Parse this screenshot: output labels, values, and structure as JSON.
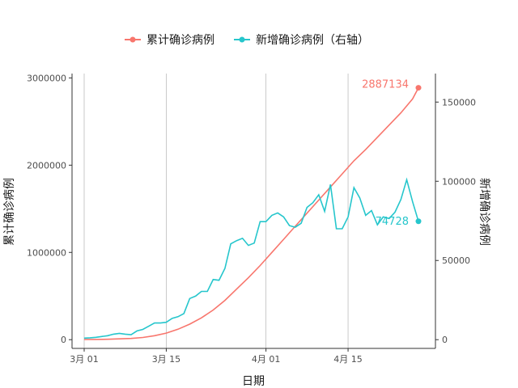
{
  "chart_data": {
    "type": "line",
    "xlabel": "日期",
    "ylabel_left": "累计确诊病例",
    "ylabel_right": "新增确诊病例",
    "x_ticks": [
      "3月 01",
      "3月 15",
      "4月 01",
      "4月 15"
    ],
    "x_tick_days": [
      1,
      15,
      32,
      46
    ],
    "y_left_ticks": [
      "0",
      "1000000",
      "2000000",
      "3000000"
    ],
    "y_left_tick_values": [
      0,
      1000000,
      2000000,
      3000000
    ],
    "y_right_ticks": [
      "0",
      "50000",
      "100000",
      "150000"
    ],
    "y_right_tick_values": [
      0,
      50000,
      100000,
      150000
    ],
    "ylim_left": [
      -100000,
      3050000
    ],
    "ylim_right": [
      -5500,
      168000
    ],
    "grid": "vertical major lines only",
    "legend_position": "top",
    "colors": {
      "cumulative": "#F8766D",
      "new": "#26C6CC"
    },
    "series": [
      {
        "name": "累计确诊病例",
        "axis": "left",
        "color": "#F8766D",
        "end_label": "2887134",
        "x": [
          1,
          3,
          5,
          7,
          9,
          11,
          13,
          15,
          17,
          19,
          21,
          23,
          25,
          27,
          29,
          31,
          33,
          35,
          37,
          39,
          41,
          43,
          45,
          47,
          49,
          51,
          53,
          55,
          57,
          58
        ],
        "values": [
          2000,
          3000,
          5000,
          9000,
          14000,
          25000,
          45000,
          75000,
          120000,
          178000,
          250000,
          340000,
          450000,
          580000,
          710000,
          850000,
          1000000,
          1150000,
          1300000,
          1450000,
          1600000,
          1750000,
          1900000,
          2050000,
          2180000,
          2320000,
          2460000,
          2600000,
          2760000,
          2887134
        ]
      },
      {
        "name": "新增确诊病例（右轴）",
        "axis": "right",
        "color": "#26C6CC",
        "end_label": "74728",
        "x": [
          1,
          2,
          3,
          4,
          5,
          6,
          7,
          8,
          9,
          10,
          11,
          12,
          13,
          14,
          15,
          16,
          17,
          18,
          19,
          20,
          21,
          22,
          23,
          24,
          25,
          26,
          27,
          28,
          29,
          30,
          31,
          32,
          33,
          34,
          35,
          36,
          37,
          38,
          39,
          40,
          41,
          42,
          43,
          44,
          45,
          46,
          47,
          48,
          49,
          50,
          51,
          52,
          53,
          54,
          55,
          56,
          57,
          58
        ],
        "values": [
          1000,
          1200,
          1500,
          2000,
          2500,
          3500,
          4000,
          3500,
          3200,
          5500,
          6500,
          8500,
          10500,
          10500,
          11000,
          13500,
          14500,
          16500,
          26000,
          27500,
          30500,
          30500,
          38000,
          37500,
          45000,
          60500,
          62500,
          64000,
          59500,
          61000,
          74500,
          74500,
          78500,
          80000,
          77500,
          72000,
          71000,
          73500,
          83500,
          86500,
          91500,
          81000,
          98000,
          70000,
          70000,
          77500,
          96000,
          89500,
          78500,
          81500,
          72500,
          77500,
          76500,
          80500,
          88500,
          101000,
          87000,
          74728
        ]
      }
    ]
  }
}
